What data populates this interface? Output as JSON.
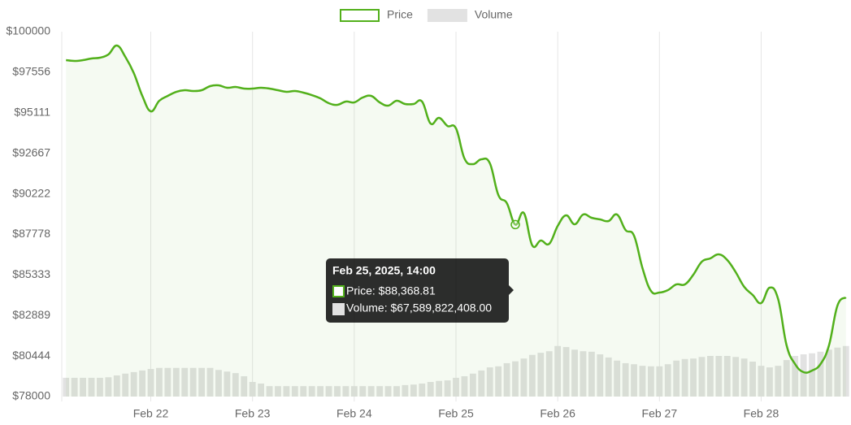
{
  "chart_data": {
    "type": "line",
    "x": [
      "2025-02-21T04:00",
      "2025-02-21T06:00",
      "2025-02-21T08:00",
      "2025-02-21T10:00",
      "2025-02-21T12:00",
      "2025-02-21T14:00",
      "2025-02-21T16:00",
      "2025-02-21T18:00",
      "2025-02-21T20:00",
      "2025-02-21T22:00",
      "2025-02-22T00:00",
      "2025-02-22T02:00",
      "2025-02-22T04:00",
      "2025-02-22T06:00",
      "2025-02-22T08:00",
      "2025-02-22T10:00",
      "2025-02-22T12:00",
      "2025-02-22T14:00",
      "2025-02-22T16:00",
      "2025-02-22T18:00",
      "2025-02-22T20:00",
      "2025-02-22T22:00",
      "2025-02-23T00:00",
      "2025-02-23T02:00",
      "2025-02-23T04:00",
      "2025-02-23T06:00",
      "2025-02-23T08:00",
      "2025-02-23T10:00",
      "2025-02-23T12:00",
      "2025-02-23T14:00",
      "2025-02-23T16:00",
      "2025-02-23T18:00",
      "2025-02-23T20:00",
      "2025-02-23T22:00",
      "2025-02-24T00:00",
      "2025-02-24T02:00",
      "2025-02-24T04:00",
      "2025-02-24T06:00",
      "2025-02-24T08:00",
      "2025-02-24T10:00",
      "2025-02-24T12:00",
      "2025-02-24T14:00",
      "2025-02-24T16:00",
      "2025-02-24T18:00",
      "2025-02-24T20:00",
      "2025-02-24T22:00",
      "2025-02-25T00:00",
      "2025-02-25T02:00",
      "2025-02-25T04:00",
      "2025-02-25T06:00",
      "2025-02-25T08:00",
      "2025-02-25T10:00",
      "2025-02-25T12:00",
      "2025-02-25T14:00",
      "2025-02-25T16:00",
      "2025-02-25T18:00",
      "2025-02-25T20:00",
      "2025-02-25T22:00",
      "2025-02-26T00:00",
      "2025-02-26T02:00",
      "2025-02-26T04:00",
      "2025-02-26T06:00",
      "2025-02-26T08:00",
      "2025-02-26T10:00",
      "2025-02-26T12:00",
      "2025-02-26T14:00",
      "2025-02-26T16:00",
      "2025-02-26T18:00",
      "2025-02-26T20:00",
      "2025-02-26T22:00",
      "2025-02-27T00:00",
      "2025-02-27T02:00",
      "2025-02-27T04:00",
      "2025-02-27T06:00",
      "2025-02-27T08:00",
      "2025-02-27T10:00",
      "2025-02-27T12:00",
      "2025-02-27T14:00",
      "2025-02-27T16:00",
      "2025-02-27T18:00",
      "2025-02-27T20:00",
      "2025-02-27T22:00",
      "2025-02-28T00:00",
      "2025-02-28T02:00",
      "2025-02-28T04:00",
      "2025-02-28T06:00",
      "2025-02-28T08:00",
      "2025-02-28T10:00",
      "2025-02-28T12:00",
      "2025-02-28T14:00",
      "2025-02-28T16:00",
      "2025-02-28T18:00",
      "2025-02-28T20:00"
    ],
    "series": [
      {
        "name": "Price",
        "color": "#52b01b",
        "fill": "rgba(82,176,27,0.06)",
        "values": [
          98285,
          98236,
          98285,
          98383,
          98432,
          98628,
          99167,
          98481,
          97501,
          96129,
          95198,
          95835,
          96129,
          96374,
          96472,
          96423,
          96472,
          96717,
          96766,
          96619,
          96668,
          96570,
          96570,
          96619,
          96570,
          96472,
          96374,
          96423,
          96325,
          96178,
          95982,
          95688,
          95590,
          95786,
          95737,
          96031,
          96129,
          95737,
          95541,
          95835,
          95639,
          95639,
          95786,
          94463,
          94806,
          94316,
          94169,
          92356,
          92013,
          92307,
          92062,
          90151,
          89661,
          88368.81,
          89073,
          87114,
          87408,
          87212,
          88289,
          88926,
          88387,
          88975,
          88779,
          88681,
          88583,
          88975,
          88044,
          87702,
          85742,
          84370,
          84272,
          84419,
          84762,
          84762,
          85350,
          86134,
          86330,
          86575,
          86232,
          85497,
          84615,
          84125,
          83635,
          84566,
          83880,
          81087,
          79960,
          79470,
          79568,
          79960,
          81087,
          83488,
          83978
        ]
      },
      {
        "name": "Volume",
        "color": "#e2e2e2",
        "axis": "y2",
        "bar": true,
        "values": [
          36000000000,
          36000000000,
          36000000000,
          36000000000,
          36000000000,
          37000000000,
          40500000000,
          44000000000,
          47000000000,
          50000000000,
          53000000000,
          55000000000,
          55000000000,
          55000000000,
          55000000000,
          55000000000,
          55000000000,
          55000000000,
          51000000000,
          48000000000,
          45000000000,
          39000000000,
          28000000000,
          25000000000,
          20000000000,
          20000000000,
          20000000000,
          20000000000,
          20000000000,
          20000000000,
          20000000000,
          20000000000,
          20000000000,
          20000000000,
          20000000000,
          20000000000,
          20000000000,
          20000000000,
          20000000000,
          20000000000,
          22000000000,
          23000000000,
          25000000000,
          28000000000,
          30000000000,
          31000000000,
          36000000000,
          39000000000,
          44000000000,
          50000000000,
          56000000000,
          58000000000,
          64000000000,
          67589822408,
          73000000000,
          80000000000,
          84000000000,
          87000000000,
          97000000000,
          95000000000,
          90000000000,
          87000000000,
          86000000000,
          81000000000,
          75000000000,
          69000000000,
          64000000000,
          62000000000,
          59000000000,
          58000000000,
          58000000000,
          62000000000,
          69000000000,
          72000000000,
          73000000000,
          76000000000,
          78000000000,
          78000000000,
          78000000000,
          76000000000,
          73000000000,
          67000000000,
          59000000000,
          56000000000,
          59000000000,
          70000000000,
          78000000000,
          81000000000,
          83000000000,
          86000000000,
          90000000000,
          94000000000,
          97000000000
        ]
      }
    ],
    "xlim": [
      "2025-02-21T03:00",
      "2025-02-28T21:00"
    ],
    "xticks": [
      {
        "value": "2025-02-22T00:00",
        "label": "Feb 22"
      },
      {
        "value": "2025-02-23T00:00",
        "label": "Feb 23"
      },
      {
        "value": "2025-02-24T00:00",
        "label": "Feb 24"
      },
      {
        "value": "2025-02-25T00:00",
        "label": "Feb 25"
      },
      {
        "value": "2025-02-26T00:00",
        "label": "Feb 26"
      },
      {
        "value": "2025-02-27T00:00",
        "label": "Feb 27"
      },
      {
        "value": "2025-02-28T00:00",
        "label": "Feb 28"
      }
    ],
    "ylim": [
      78000,
      100000
    ],
    "yticks": [
      {
        "value": 100000,
        "label": "$100000"
      },
      {
        "value": 97556,
        "label": "$97556"
      },
      {
        "value": 95111,
        "label": "$95111"
      },
      {
        "value": 92667,
        "label": "$92667"
      },
      {
        "value": 90222,
        "label": "$90222"
      },
      {
        "value": 87778,
        "label": "$87778"
      },
      {
        "value": 85333,
        "label": "$85333"
      },
      {
        "value": 82889,
        "label": "$82889"
      },
      {
        "value": 80444,
        "label": "$80444"
      },
      {
        "value": 78000,
        "label": "$78000"
      }
    ],
    "y2lim": [
      0,
      700000000000
    ],
    "grid": true,
    "legend": "top",
    "tooltip": {
      "title": "Feb 25, 2025, 14:00",
      "items": [
        "Price: $88,368.81",
        "Volume: $67,589,822,408.00"
      ]
    }
  }
}
